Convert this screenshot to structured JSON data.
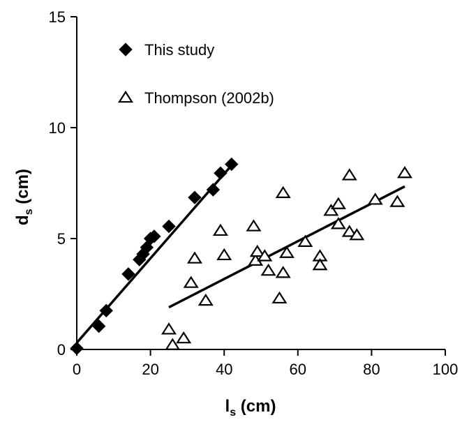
{
  "chart_data": {
    "type": "scatter",
    "xlabel": {
      "main": "l",
      "sub": "s",
      "unit": " (cm)"
    },
    "ylabel": {
      "main": "d",
      "sub": "s",
      "unit": " (cm)"
    },
    "xlim": [
      0,
      100
    ],
    "ylim": [
      0,
      15
    ],
    "xticks": [
      0,
      20,
      40,
      60,
      80,
      100
    ],
    "yticks": [
      0,
      5,
      10,
      15
    ],
    "grid": false,
    "legend_position": "top-left",
    "series": [
      {
        "name": "This study",
        "marker": "filled-diamond",
        "color": "#000000",
        "points": [
          [
            0,
            0.05
          ],
          [
            6,
            1.05
          ],
          [
            8,
            1.75
          ],
          [
            14,
            3.4
          ],
          [
            17,
            4.05
          ],
          [
            18,
            4.3
          ],
          [
            19,
            4.6
          ],
          [
            20,
            5.0
          ],
          [
            21,
            5.1
          ],
          [
            25,
            5.55
          ],
          [
            32,
            6.85
          ],
          [
            37,
            7.2
          ],
          [
            39,
            7.95
          ],
          [
            42,
            8.35
          ]
        ],
        "trendline": {
          "x0": 0,
          "y0": 0.3,
          "x1": 42,
          "y1": 8.3
        }
      },
      {
        "name": "Thompson (2002b)",
        "marker": "open-triangle",
        "color": "#000000",
        "points": [
          [
            25,
            0.9
          ],
          [
            26,
            0.2
          ],
          [
            29,
            0.5
          ],
          [
            31,
            3.0
          ],
          [
            32,
            4.1
          ],
          [
            35,
            2.2
          ],
          [
            39,
            5.35
          ],
          [
            40,
            4.25
          ],
          [
            48,
            5.55
          ],
          [
            48.5,
            4.0
          ],
          [
            49,
            4.4
          ],
          [
            51,
            4.2
          ],
          [
            52,
            3.55
          ],
          [
            55,
            2.3
          ],
          [
            56,
            3.45
          ],
          [
            56,
            7.05
          ],
          [
            57,
            4.35
          ],
          [
            62,
            4.85
          ],
          [
            66,
            4.2
          ],
          [
            66,
            3.8
          ],
          [
            69,
            6.25
          ],
          [
            71,
            6.55
          ],
          [
            71,
            5.65
          ],
          [
            74,
            7.85
          ],
          [
            74,
            5.3
          ],
          [
            76,
            5.15
          ],
          [
            81,
            6.75
          ],
          [
            87,
            6.65
          ],
          [
            89,
            7.95
          ]
        ],
        "trendline": {
          "x0": 25,
          "y0": 1.9,
          "x1": 89,
          "y1": 7.35
        }
      }
    ]
  }
}
